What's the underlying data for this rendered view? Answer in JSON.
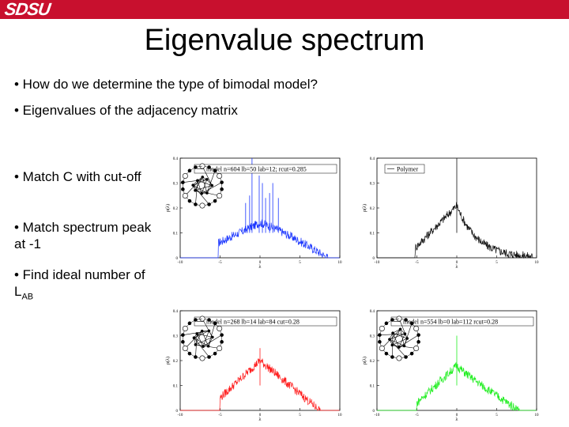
{
  "header": {
    "logo_text": "SDSU",
    "bar_color": "#c8102e"
  },
  "slide": {
    "title": "Eigenvalue spectrum",
    "bullets": [
      "• How do we determine the type of bimodal model?",
      "• Eigenvalues of the adjacency matrix"
    ],
    "side_bullets": [
      "• Match C with cut-off",
      "• Match spectrum peak at -1"
    ],
    "side_bullet_3_prefix": "• Find ideal number of L",
    "side_bullet_3_subscript": "AB"
  },
  "plots": [
    {
      "legend": "model n=604 lb=50 lab=12; rcut=0.285",
      "color": "#1a35ff",
      "has_network": true
    },
    {
      "legend": "Polymer",
      "color": "#111111",
      "has_network": false
    },
    {
      "legend": "model n=268 lb=14 lab=84 cut=0.28",
      "color": "#ff1a1a",
      "has_network": true
    },
    {
      "legend": "model n=554 lb=0 lab=112 rcut=0.28",
      "color": "#22ee22",
      "has_network": true
    }
  ],
  "axes": {
    "ylabel": "ρ(λ)",
    "xlabel": "λ",
    "yticks": [
      "0",
      "0.1",
      "0.2",
      "0.3",
      "0.4"
    ],
    "xticks": [
      "-10",
      "-5",
      "0",
      "5",
      "10"
    ]
  }
}
